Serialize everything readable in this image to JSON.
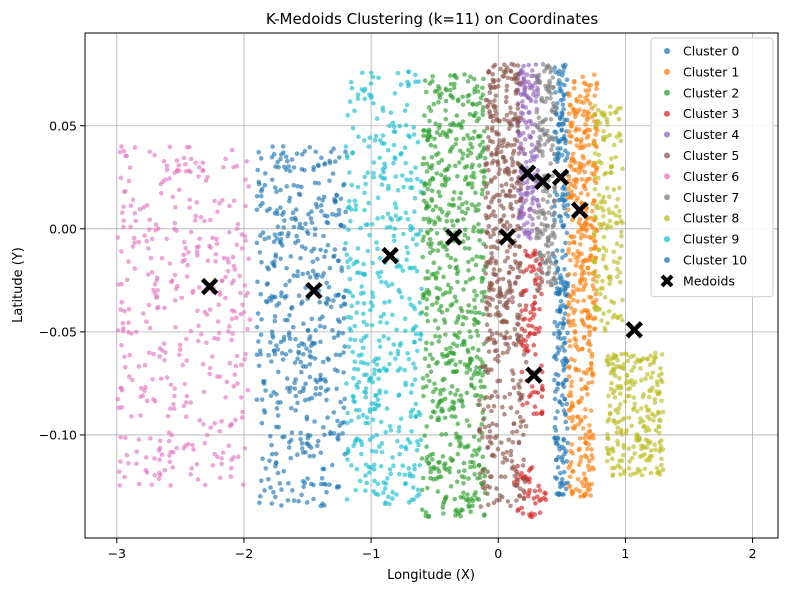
{
  "chart_data": {
    "type": "scatter",
    "title": "K-Medoids Clustering (k=11) on Coordinates",
    "xlabel": "Longitude (X)",
    "ylabel": "Latitude (Y)",
    "xlim": [
      -3.25,
      2.2
    ],
    "ylim": [
      -0.15,
      0.095
    ],
    "x_ticks": [
      -3,
      -2,
      -1,
      0,
      1,
      2
    ],
    "x_tick_labels": [
      "−3",
      "−2",
      "−1",
      "0",
      "1",
      "2"
    ],
    "y_ticks": [
      -0.1,
      -0.05,
      0.0,
      0.05
    ],
    "y_tick_labels": [
      "−0.10",
      "−0.05",
      "0.00",
      "0.05"
    ],
    "grid": true,
    "legend_position": "top-right",
    "series": [
      {
        "name": "Cluster 0",
        "color": "#1f77b4",
        "regions": [
          {
            "x": [
              0.44,
              0.55
            ],
            "y": [
              -0.13,
              0.08
            ],
            "n": 260
          }
        ]
      },
      {
        "name": "Cluster 1",
        "color": "#ff7f0e",
        "regions": [
          {
            "x": [
              0.55,
              0.78
            ],
            "y": [
              -0.05,
              0.075
            ],
            "n": 300
          },
          {
            "x": [
              0.55,
              0.75
            ],
            "y": [
              -0.13,
              -0.05
            ],
            "n": 140
          }
        ]
      },
      {
        "name": "Cluster 2",
        "color": "#2ca02c",
        "regions": [
          {
            "x": [
              -0.6,
              -0.1
            ],
            "y": [
              -0.14,
              0.075
            ],
            "n": 650
          }
        ]
      },
      {
        "name": "Cluster 3",
        "color": "#d62728",
        "regions": [
          {
            "x": [
              0.18,
              0.35
            ],
            "y": [
              -0.09,
              -0.01
            ],
            "n": 100
          },
          {
            "x": [
              0.1,
              0.38
            ],
            "y": [
              -0.14,
              -0.115
            ],
            "n": 45
          }
        ]
      },
      {
        "name": "Cluster 4",
        "color": "#9467bd",
        "regions": [
          {
            "x": [
              0.15,
              0.32
            ],
            "y": [
              -0.005,
              0.08
            ],
            "n": 180
          }
        ]
      },
      {
        "name": "Cluster 5",
        "color": "#8c564b",
        "regions": [
          {
            "x": [
              -0.1,
              0.18
            ],
            "y": [
              -0.06,
              0.08
            ],
            "n": 380
          },
          {
            "x": [
              -0.15,
              0.22
            ],
            "y": [
              -0.135,
              -0.06
            ],
            "n": 130
          }
        ]
      },
      {
        "name": "Cluster 6",
        "color": "#e377c2",
        "regions": [
          {
            "x": [
              -3.0,
              -1.95
            ],
            "y": [
              -0.125,
              0.04
            ],
            "n": 380
          }
        ]
      },
      {
        "name": "Cluster 7",
        "color": "#7f7f7f",
        "regions": [
          {
            "x": [
              0.3,
              0.45
            ],
            "y": [
              -0.03,
              0.08
            ],
            "n": 170
          }
        ]
      },
      {
        "name": "Cluster 8",
        "color": "#bcbd22",
        "regions": [
          {
            "x": [
              0.75,
              0.98
            ],
            "y": [
              -0.05,
              0.06
            ],
            "n": 150
          },
          {
            "x": [
              0.85,
              1.3
            ],
            "y": [
              -0.12,
              -0.06
            ],
            "n": 240
          }
        ]
      },
      {
        "name": "Cluster 9",
        "color": "#17becf",
        "regions": [
          {
            "x": [
              -1.2,
              -0.6
            ],
            "y": [
              -0.135,
              0.078
            ],
            "n": 450
          }
        ]
      },
      {
        "name": "Cluster 10",
        "color": "#1f77b4",
        "regions": [
          {
            "x": [
              -1.9,
              -1.2
            ],
            "y": [
              -0.135,
              0.04
            ],
            "n": 480
          }
        ]
      }
    ],
    "medoids": {
      "name": "Medoids",
      "color": "#000000",
      "x": [
        -2.27,
        -1.45,
        -0.85,
        -0.35,
        0.07,
        0.23,
        0.35,
        0.49,
        0.64,
        1.07,
        0.28
      ],
      "y": [
        -0.028,
        -0.03,
        -0.013,
        -0.004,
        -0.004,
        0.027,
        0.023,
        0.025,
        0.009,
        -0.049,
        -0.071
      ]
    }
  }
}
